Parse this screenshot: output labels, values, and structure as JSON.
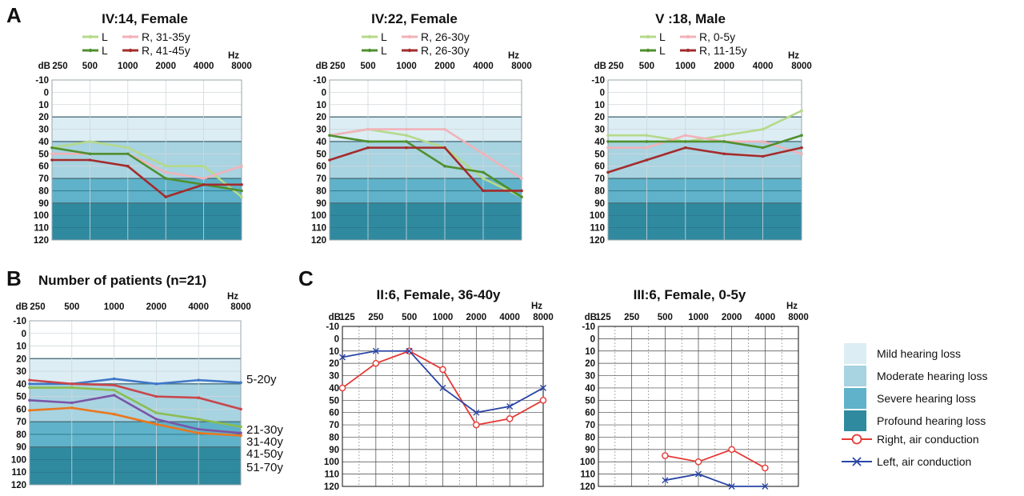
{
  "panel_labels": [
    "A",
    "B",
    "C"
  ],
  "audio_freq_labels": [
    "250",
    "500",
    "1000",
    "2000",
    "4000",
    "8000"
  ],
  "full_freq_labels": [
    "125",
    "250",
    "500",
    "1000",
    "2000",
    "4000",
    "8000"
  ],
  "db_tick_labels": [
    "-10",
    "0",
    "10",
    "20",
    "30",
    "40",
    "50",
    "60",
    "70",
    "80",
    "90",
    "100",
    "110",
    "120"
  ],
  "unit_db": "dB",
  "unit_hz": "Hz",
  "colors": {
    "mild": "#dcedf4",
    "moderate": "#a8d3e1",
    "severe": "#5fb2c9",
    "profound": "#2f8aa0",
    "light_green": "#b5d98a",
    "dark_green": "#4f8f2e",
    "pink": "#f2b2b8",
    "dark_red": "#a32c2c",
    "right_air": "#e53935",
    "left_air": "#2a45a5",
    "b_5_20y": "#3f78c8",
    "b_21_30y": "#c8464a",
    "b_31_40y": "#8bbd4e",
    "b_41_50y": "#7a55a6",
    "b_51_70y": "#e9781f"
  },
  "legend_c": {
    "mild": "Mild hearing loss",
    "moderate": "Moderate hearing loss",
    "severe": "Severe hearing loss",
    "profound": "Profound hearing loss",
    "right_air": "Right, air conduction",
    "left_air": "Left, air conduction"
  },
  "chart_data": [
    {
      "type": "line",
      "title": "IV:14, Female",
      "xlabel": "Hz",
      "ylabel": "dB",
      "categories": [
        "250",
        "500",
        "1000",
        "2000",
        "4000",
        "8000"
      ],
      "ylim": [
        -10,
        120
      ],
      "legend_rows": [
        [
          "L",
          "R, 31-35y"
        ],
        [
          "L",
          "R, 41-45y"
        ]
      ],
      "series": [
        {
          "name": "L",
          "color": "light_green",
          "values": [
            45,
            40,
            45,
            60,
            60,
            85
          ]
        },
        {
          "name": "R, 31-35y",
          "color": "pink",
          "values": [
            50,
            50,
            50,
            65,
            70,
            60
          ]
        },
        {
          "name": "L",
          "color": "dark_green",
          "values": [
            45,
            50,
            50,
            70,
            75,
            80
          ]
        },
        {
          "name": "R, 41-45y",
          "color": "dark_red",
          "values": [
            55,
            55,
            60,
            85,
            75,
            75
          ]
        }
      ]
    },
    {
      "type": "line",
      "title": "IV:22, Female",
      "xlabel": "Hz",
      "ylabel": "dB",
      "categories": [
        "250",
        "500",
        "1000",
        "2000",
        "4000",
        "8000"
      ],
      "ylim": [
        -10,
        120
      ],
      "legend_rows": [
        [
          "L",
          "R, 26-30y"
        ],
        [
          "L",
          "R, 26-30y"
        ]
      ],
      "series": [
        {
          "name": "L",
          "color": "light_green",
          "values": [
            35,
            30,
            35,
            45,
            70,
            85
          ]
        },
        {
          "name": "R, 26-30y",
          "color": "pink",
          "values": [
            35,
            30,
            30,
            30,
            50,
            70
          ]
        },
        {
          "name": "L",
          "color": "dark_green",
          "values": [
            35,
            40,
            40,
            60,
            65,
            85
          ]
        },
        {
          "name": "R, 26-30y",
          "color": "dark_red",
          "values": [
            55,
            45,
            45,
            45,
            80,
            80
          ]
        }
      ]
    },
    {
      "type": "line",
      "title": "V :18, Male",
      "xlabel": "Hz",
      "ylabel": "dB",
      "categories": [
        "250",
        "500",
        "1000",
        "2000",
        "4000",
        "8000"
      ],
      "ylim": [
        -10,
        120
      ],
      "legend_rows": [
        [
          "L",
          "R, 0-5y"
        ],
        [
          "L",
          "R, 11-15y"
        ]
      ],
      "series": [
        {
          "name": "L",
          "color": "light_green",
          "values": [
            35,
            35,
            40,
            35,
            30,
            15
          ]
        },
        {
          "name": "R, 0-5y",
          "color": "pink",
          "values": [
            45,
            45,
            35,
            40,
            40,
            50
          ]
        },
        {
          "name": "L",
          "color": "dark_green",
          "values": [
            40,
            40,
            40,
            40,
            45,
            35
          ]
        },
        {
          "name": "R, 11-15y",
          "color": "dark_red",
          "values": [
            65,
            55,
            45,
            50,
            52,
            45
          ]
        }
      ]
    },
    {
      "type": "line",
      "title": "Number of patients (n=21)",
      "xlabel": "Hz",
      "ylabel": "dB",
      "categories": [
        "250",
        "500",
        "1000",
        "2000",
        "4000",
        "8000"
      ],
      "ylim": [
        -10,
        120
      ],
      "series": [
        {
          "name": "5-20y",
          "color": "b_5_20y",
          "values": [
            40,
            40,
            36,
            40,
            37,
            39
          ]
        },
        {
          "name": "21-30y",
          "color": "b_21_30y",
          "values": [
            37,
            40,
            41,
            50,
            51,
            60
          ]
        },
        {
          "name": "31-40y",
          "color": "b_31_40y",
          "values": [
            43,
            43,
            45,
            63,
            68,
            74
          ]
        },
        {
          "name": "41-50y",
          "color": "b_41_50y",
          "values": [
            53,
            55,
            49,
            68,
            76,
            79
          ]
        },
        {
          "name": "51-70y",
          "color": "b_51_70y",
          "values": [
            61,
            59,
            64,
            72,
            79,
            81
          ]
        }
      ]
    },
    {
      "type": "line",
      "title": "II:6, Female, 36-40y",
      "xlabel": "Hz",
      "ylabel": "dB",
      "categories": [
        "125",
        "250",
        "500",
        "1000",
        "2000",
        "4000",
        "8000"
      ],
      "ylim": [
        -10,
        120
      ],
      "series": [
        {
          "name": "Right, air conduction",
          "color": "right_air",
          "marker": "circle",
          "values": [
            40,
            20,
            10,
            25,
            70,
            65,
            50
          ]
        },
        {
          "name": "Left, air conduction",
          "color": "left_air",
          "marker": "x",
          "values": [
            15,
            10,
            10,
            40,
            60,
            55,
            40
          ]
        }
      ]
    },
    {
      "type": "line",
      "title": "III:6, Female, 0-5y",
      "xlabel": "Hz",
      "ylabel": "dB",
      "categories": [
        "125",
        "250",
        "500",
        "1000",
        "2000",
        "4000",
        "8000"
      ],
      "ylim": [
        -10,
        120
      ],
      "series": [
        {
          "name": "Right, air conduction",
          "color": "right_air",
          "marker": "circle",
          "values": [
            null,
            null,
            95,
            100,
            90,
            105,
            null
          ]
        },
        {
          "name": "Left, air conduction",
          "color": "left_air",
          "marker": "x",
          "values": [
            null,
            null,
            115,
            110,
            120,
            120,
            null
          ]
        }
      ]
    }
  ]
}
